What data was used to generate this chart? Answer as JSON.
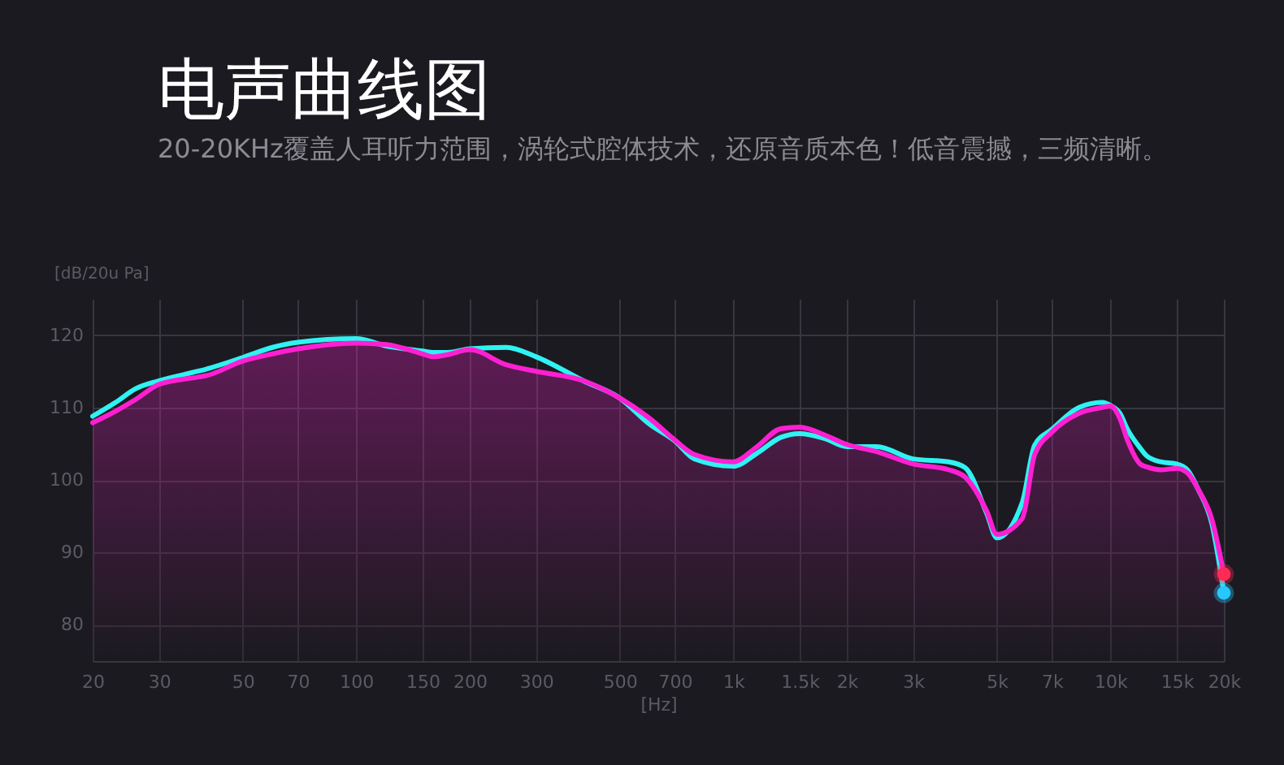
{
  "chart_data": {
    "type": "line",
    "title": "电声曲线图",
    "subtitle": "20-20KHz覆盖人耳听力范围，涡轮式腔体技术，还原音质本色！低音震撼，三频清晰。",
    "xlabel": "[Hz]",
    "ylabel": "[dB/20u Pa]",
    "log": "x",
    "grid": true,
    "xlim": [
      20,
      20000
    ],
    "xticks": [
      20,
      30,
      50,
      70,
      100,
      150,
      200,
      300,
      500,
      700,
      {
        "value": 1000,
        "label": "1k"
      },
      {
        "value": 1500,
        "label": "1.5k"
      },
      {
        "value": 2000,
        "label": "2k"
      },
      {
        "value": 3000,
        "label": "3k"
      },
      {
        "value": 5000,
        "label": "5k"
      },
      {
        "value": 7000,
        "label": "7k"
      },
      {
        "value": 10000,
        "label": "10k"
      },
      {
        "value": 15000,
        "label": "15k"
      },
      {
        "value": 20000,
        "label": "20k"
      }
    ],
    "ylim": [
      75,
      125
    ],
    "yticks": [
      80,
      90,
      100,
      110,
      120
    ],
    "x": [
      20,
      23,
      26,
      30,
      38,
      40,
      50,
      60,
      70,
      100,
      120,
      150,
      160,
      175,
      200,
      250,
      300,
      400,
      500,
      600,
      700,
      790,
      1000,
      1150,
      1340,
      1500,
      1750,
      2000,
      2400,
      3000,
      3730,
      4120,
      4700,
      5000,
      5840,
      6300,
      7000,
      8260,
      9500,
      10000,
      10600,
      11100,
      12000,
      12500,
      13600,
      15000,
      16000,
      17100,
      18600,
      20000
    ],
    "series": [
      {
        "color": "#30f2f2",
        "values": [
          108.8,
          110.7,
          112.6,
          113.7,
          115.0,
          115.3,
          116.9,
          118.3,
          119.0,
          119.5,
          118.5,
          117.8,
          117.6,
          117.6,
          118.1,
          118.3,
          117.0,
          113.7,
          111.3,
          107.7,
          105.4,
          102.9,
          101.9,
          103.6,
          105.9,
          106.4,
          105.7,
          104.6,
          104.6,
          102.9,
          102.5,
          101.7,
          95.4,
          92.0,
          96.9,
          104.8,
          107.0,
          110.0,
          110.7,
          110.3,
          109.2,
          107.0,
          104.4,
          103.3,
          102.5,
          102.2,
          101.4,
          98.7,
          93.9,
          84.4
        ]
      },
      {
        "type": "area",
        "color": "#ff1fd2",
        "values": [
          107.9,
          109.5,
          111.1,
          113.2,
          114.2,
          114.4,
          116.4,
          117.4,
          118.1,
          118.9,
          118.7,
          117.4,
          117.0,
          117.3,
          118.0,
          115.9,
          115.0,
          113.7,
          111.3,
          108.5,
          105.5,
          103.5,
          102.5,
          104.5,
          107.1,
          107.3,
          106.2,
          104.9,
          103.9,
          102.2,
          101.4,
          100.4,
          95.7,
          92.5,
          94.7,
          103.5,
          106.6,
          109.2,
          110.0,
          110.2,
          108.5,
          105.5,
          102.2,
          101.8,
          101.4,
          101.6,
          101.0,
          98.7,
          94.5,
          87.0
        ]
      },
      {
        "type": "scatter",
        "marker": "circle",
        "color": "#ff2a55",
        "x": [
          20000
        ],
        "values": [
          87.0
        ]
      },
      {
        "type": "scatter",
        "marker": "circle",
        "color": "#27c8ff",
        "x": [
          20000
        ],
        "values": [
          84.4
        ]
      }
    ]
  }
}
